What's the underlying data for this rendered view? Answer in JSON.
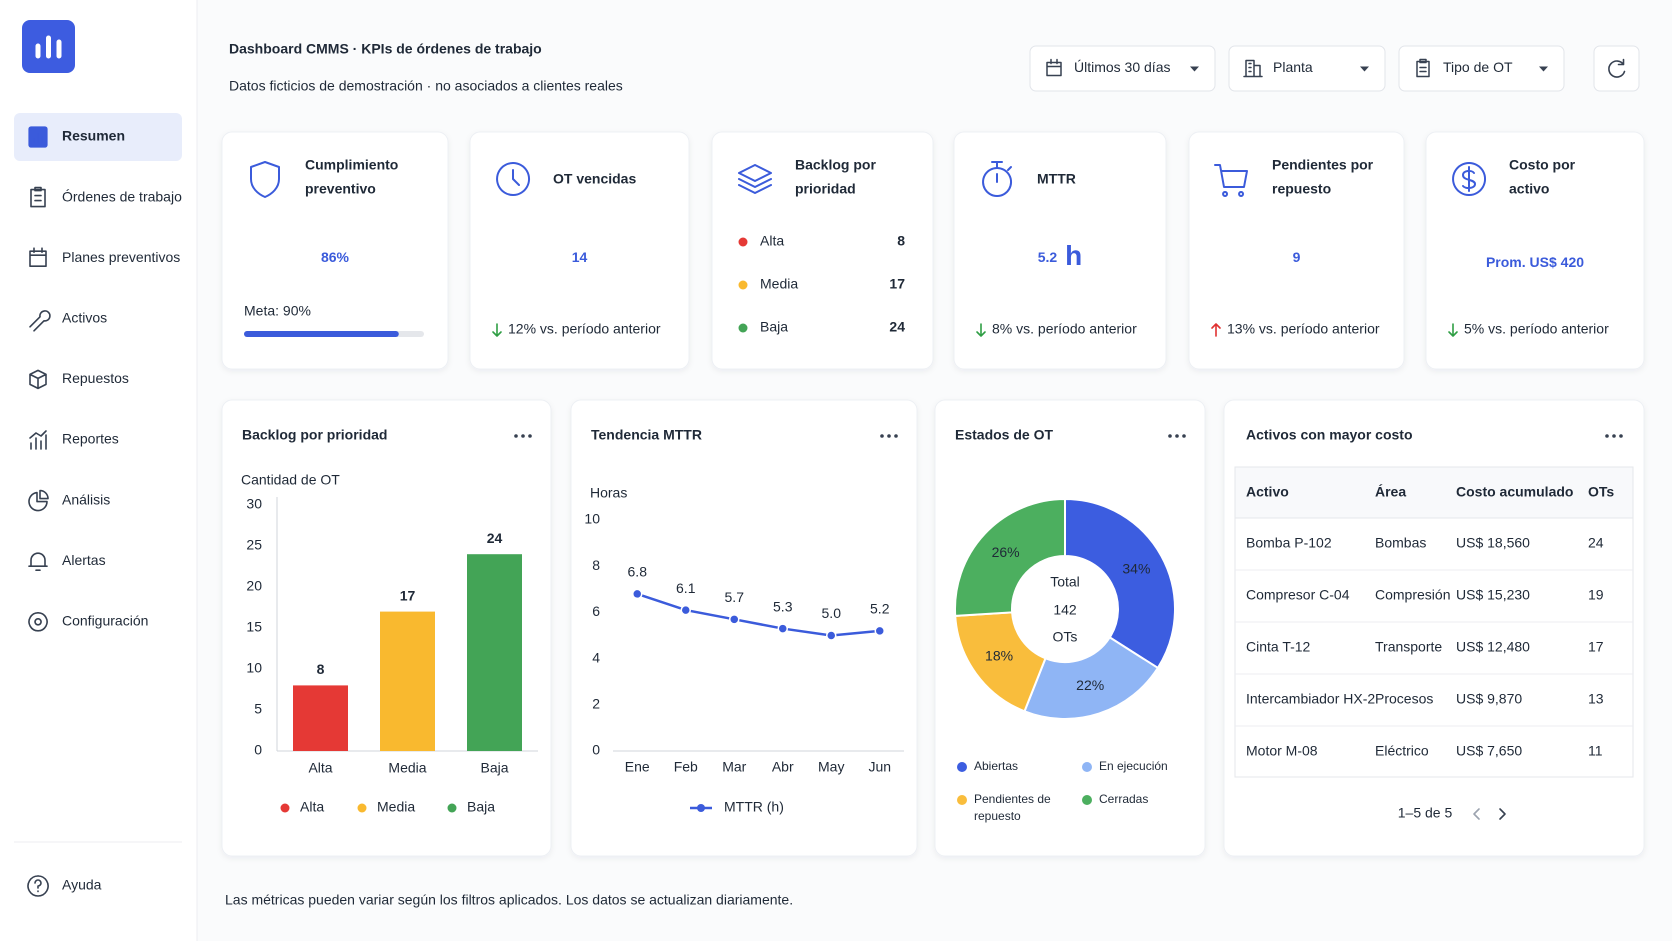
{
  "sidebar": {
    "nav": [
      "Resumen",
      "Órdenes de trabajo",
      "Planes preventivos",
      "Activos",
      "Repuestos",
      "Reportes",
      "Análisis",
      "Alertas",
      "Configuración"
    ],
    "active": 0,
    "help": "Ayuda"
  },
  "header": {
    "title": "Dashboard CMMS · KPIs de órdenes de trabajo",
    "subtitle": "Datos ficticios de demostración · no asociados a clientes reales",
    "filters": [
      "Últimos 30 días",
      "Planta",
      "Tipo de OT"
    ]
  },
  "kpis": [
    {
      "title": [
        "Cumplimiento",
        "preventivo"
      ],
      "value": 86,
      "value_label": "86%",
      "goal": "Meta: 90%"
    },
    {
      "title": [
        "OT vencidas"
      ],
      "value": 14,
      "trend": "12% vs. período anterior",
      "trend_direction": "down"
    },
    {
      "title": [
        "Backlog por",
        "prioridad"
      ],
      "items": [
        {
          "label": "Alta",
          "value": 8,
          "color": "#e53935"
        },
        {
          "label": "Media",
          "value": 17,
          "color": "#f9b92f"
        },
        {
          "label": "Baja",
          "value": 24,
          "color": "#43a456"
        }
      ]
    },
    {
      "title": [
        "MTTR"
      ],
      "value": 5.2,
      "unit": "h",
      "trend": "8% vs. período anterior",
      "trend_direction": "down"
    },
    {
      "title": [
        "Pendientes por",
        "repuesto"
      ],
      "value": 9,
      "trend": "13% vs. período anterior",
      "trend_direction": "up"
    },
    {
      "title": [
        "Costo por",
        "activo"
      ],
      "value": "Prom. US$ 420",
      "trend": "5% vs. período anterior",
      "trend_direction": "down"
    }
  ],
  "chart_data": [
    {
      "type": "bar",
      "title": "Backlog por prioridad",
      "y_label": "Cantidad de OT",
      "categories": [
        "Alta",
        "Media",
        "Baja"
      ],
      "values": [
        8,
        17,
        24
      ],
      "colors": [
        "#e53935",
        "#f9b92f",
        "#43a456"
      ],
      "ylim": [
        0,
        30
      ],
      "yticks": [
        0,
        5,
        10,
        15,
        20,
        25,
        30
      ],
      "grid": false
    },
    {
      "type": "line",
      "title": "Tendencia MTTR",
      "y_label": "Horas",
      "categories": [
        "Ene",
        "Feb",
        "Mar",
        "Abr",
        "May",
        "Jun"
      ],
      "series": [
        {
          "name": "MTTR (h)",
          "color": "#3b5bdb",
          "values": [
            6.8,
            6.1,
            5.7,
            5.3,
            5.0,
            5.2
          ],
          "value_labels": [
            "6.8",
            "6.1",
            "5.7",
            "5.3",
            "5.0",
            "5.2"
          ]
        }
      ],
      "ylim": [
        0,
        10
      ],
      "yticks": [
        0,
        2,
        4,
        6,
        8,
        10
      ],
      "grid": false
    },
    {
      "type": "pie",
      "title": "Estados de OT",
      "donut": true,
      "center_label": "Total",
      "center_value": 142,
      "center_unit": "OTs",
      "categories": [
        "Abiertas",
        "En ejecución",
        "Pendientes de repuesto",
        "Cerradas"
      ],
      "values": [
        34,
        22,
        18,
        26
      ],
      "value_labels": [
        "34%",
        "22%",
        "18%",
        "26%"
      ],
      "colors": [
        "#3c5de0",
        "#8fb5f5",
        "#f9bd3c",
        "#4caf5f"
      ]
    }
  ],
  "table": {
    "title": "Activos con mayor costo",
    "columns": [
      "Activo",
      "Área",
      "Costo acumulado",
      "OTs"
    ],
    "rows": [
      [
        "Bomba P-102",
        "Bombas",
        "US$ 18,560",
        24
      ],
      [
        "Compresor C-04",
        "Compresión",
        "US$ 15,230",
        19
      ],
      [
        "Cinta T-12",
        "Transporte",
        "US$ 12,480",
        17
      ],
      [
        "Intercambiador HX-2",
        "Procesos",
        "US$ 9,870",
        13
      ],
      [
        "Motor M-08",
        "Eléctrico",
        "US$ 7,650",
        11
      ]
    ],
    "pagination": "1–5 de 5"
  },
  "footer": "Las métricas pueden variar según los filtros aplicados. Los datos se actualizan diariamente."
}
